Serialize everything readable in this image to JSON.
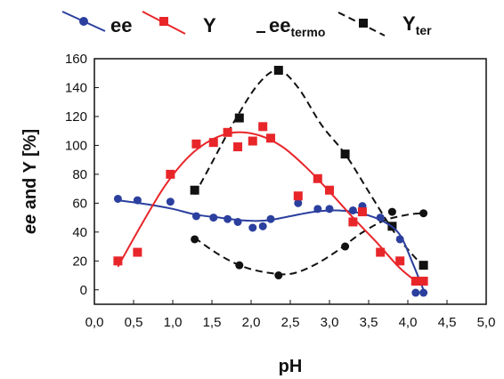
{
  "chart_data": {
    "type": "scatter",
    "xlabel": "pH",
    "ylabel_parts": {
      "ee": "ee",
      "rest": " and Y [%]"
    },
    "xlim": [
      0,
      5
    ],
    "ylim": [
      -10,
      160
    ],
    "xticks": [
      "0,0",
      "0,5",
      "1,0",
      "1,5",
      "2,0",
      "2,5",
      "3,0",
      "3,5",
      "4,0",
      "4,5",
      "5,0"
    ],
    "yticks": [
      "0",
      "20",
      "40",
      "60",
      "80",
      "100",
      "120",
      "140",
      "160"
    ],
    "grid": false,
    "legend_position": "top",
    "legend": {
      "ee": "ee",
      "Y": "Y",
      "ee_termo": {
        "base": "ee",
        "sub": "termo"
      },
      "Y_ter": {
        "base": "Y",
        "sub": "ter"
      }
    },
    "colors": {
      "ee": "#2b3f9e",
      "Y": "#e8262a",
      "ee_termo": "#111111",
      "Y_ter": "#111111"
    },
    "series": [
      {
        "key": "ee",
        "marker": "circle",
        "points": [
          [
            0.3,
            63
          ],
          [
            0.55,
            62
          ],
          [
            0.97,
            61
          ],
          [
            1.3,
            51
          ],
          [
            1.52,
            50
          ],
          [
            1.7,
            49
          ],
          [
            1.83,
            47
          ],
          [
            2.02,
            43
          ],
          [
            2.15,
            44
          ],
          [
            2.25,
            49
          ],
          [
            2.6,
            60
          ],
          [
            2.85,
            56
          ],
          [
            3.0,
            56
          ],
          [
            3.3,
            55
          ],
          [
            3.42,
            58
          ],
          [
            3.65,
            50
          ],
          [
            3.9,
            35
          ],
          [
            4.1,
            -2
          ],
          [
            4.2,
            -2
          ]
        ],
        "fit": [
          [
            0.3,
            62
          ],
          [
            0.7,
            59
          ],
          [
            1.0,
            56
          ],
          [
            1.3,
            52
          ],
          [
            1.6,
            50
          ],
          [
            1.9,
            48
          ],
          [
            2.2,
            48
          ],
          [
            2.5,
            51
          ],
          [
            2.8,
            54
          ],
          [
            3.1,
            55
          ],
          [
            3.4,
            53
          ],
          [
            3.7,
            47
          ],
          [
            3.9,
            38
          ],
          [
            4.05,
            20
          ],
          [
            4.2,
            0
          ]
        ]
      },
      {
        "key": "Y",
        "marker": "square",
        "points": [
          [
            0.3,
            20
          ],
          [
            0.55,
            26
          ],
          [
            0.97,
            80
          ],
          [
            1.3,
            101
          ],
          [
            1.52,
            102
          ],
          [
            1.7,
            109
          ],
          [
            1.83,
            99
          ],
          [
            2.02,
            103
          ],
          [
            2.15,
            113
          ],
          [
            2.25,
            105
          ],
          [
            2.6,
            65
          ],
          [
            2.85,
            77
          ],
          [
            3.0,
            69
          ],
          [
            3.3,
            47
          ],
          [
            3.42,
            54
          ],
          [
            3.65,
            26
          ],
          [
            3.9,
            20
          ],
          [
            4.1,
            6
          ],
          [
            4.2,
            6
          ]
        ],
        "fit": [
          [
            0.3,
            16
          ],
          [
            0.6,
            45
          ],
          [
            0.9,
            72
          ],
          [
            1.2,
            92
          ],
          [
            1.5,
            104
          ],
          [
            1.8,
            109
          ],
          [
            2.1,
            107
          ],
          [
            2.4,
            99
          ],
          [
            2.7,
            85
          ],
          [
            3.0,
            68
          ],
          [
            3.3,
            50
          ],
          [
            3.6,
            33
          ],
          [
            3.9,
            15
          ],
          [
            4.15,
            4
          ]
        ]
      },
      {
        "key": "ee_termo",
        "marker": "circle",
        "points": [
          [
            1.28,
            35
          ],
          [
            1.85,
            17
          ],
          [
            2.35,
            10
          ],
          [
            3.2,
            30
          ],
          [
            3.8,
            54
          ],
          [
            4.2,
            53
          ]
        ],
        "fit": [
          [
            1.28,
            36
          ],
          [
            1.6,
            24
          ],
          [
            1.9,
            16
          ],
          [
            2.2,
            12
          ],
          [
            2.5,
            11
          ],
          [
            2.8,
            17
          ],
          [
            3.1,
            27
          ],
          [
            3.4,
            39
          ],
          [
            3.7,
            48
          ],
          [
            4.0,
            52
          ],
          [
            4.2,
            53
          ]
        ]
      },
      {
        "key": "Y_ter",
        "marker": "square",
        "points": [
          [
            1.28,
            69
          ],
          [
            1.85,
            119
          ],
          [
            2.35,
            152
          ],
          [
            3.2,
            94
          ],
          [
            3.8,
            44
          ],
          [
            4.2,
            17
          ]
        ],
        "fit": [
          [
            1.28,
            66
          ],
          [
            1.5,
            88
          ],
          [
            1.8,
            118
          ],
          [
            2.1,
            143
          ],
          [
            2.35,
            152
          ],
          [
            2.6,
            140
          ],
          [
            2.9,
            114
          ],
          [
            3.2,
            94
          ],
          [
            3.5,
            68
          ],
          [
            3.8,
            42
          ],
          [
            4.0,
            28
          ],
          [
            4.2,
            16
          ]
        ]
      }
    ]
  }
}
